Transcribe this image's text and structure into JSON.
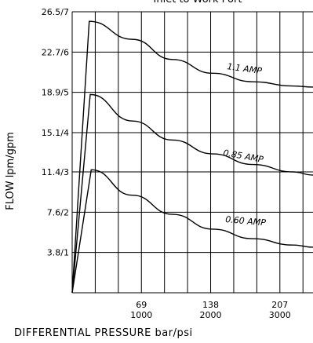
{
  "chart_data": {
    "type": "line",
    "title": "Inlet to Work Port",
    "xlabel": "DIFFERENTIAL PRESSURE  bar/psi",
    "ylabel": "FLOW lpm/gpm",
    "xlim": [
      0,
      240
    ],
    "ylim": [
      0,
      26.5
    ],
    "grid": true,
    "x_ticks": [
      {
        "value": 69,
        "bar": "69",
        "psi": "1000"
      },
      {
        "value": 138,
        "bar": "138",
        "psi": "2000"
      },
      {
        "value": 207,
        "bar": "207",
        "psi": "3000"
      }
    ],
    "y_ticks": [
      {
        "value": 3.8,
        "label": "3.8/1"
      },
      {
        "value": 7.6,
        "label": "7.6/2"
      },
      {
        "value": 11.4,
        "label": "11.4/3"
      },
      {
        "value": 15.1,
        "label": "15.1/4"
      },
      {
        "value": 18.9,
        "label": "18.9/5"
      },
      {
        "value": 22.7,
        "label": "22.7/6"
      },
      {
        "value": 26.5,
        "label": "26.5/7"
      }
    ],
    "series": [
      {
        "name": "1.1 AMP",
        "x": [
          0,
          17,
          60,
          100,
          140,
          180,
          220,
          240
        ],
        "y": [
          0,
          25.6,
          23.9,
          22.0,
          20.7,
          19.9,
          19.5,
          19.4
        ]
      },
      {
        "name": "0.85 AMP",
        "x": [
          0,
          18,
          60,
          100,
          140,
          180,
          220,
          240
        ],
        "y": [
          0,
          18.7,
          16.2,
          14.4,
          13.1,
          12.1,
          11.4,
          11.1
        ]
      },
      {
        "name": "0.60 AMP",
        "x": [
          0,
          19,
          60,
          100,
          140,
          180,
          220,
          240
        ],
        "y": [
          0,
          11.6,
          9.2,
          7.4,
          6.0,
          5.1,
          4.5,
          4.3
        ]
      }
    ]
  }
}
